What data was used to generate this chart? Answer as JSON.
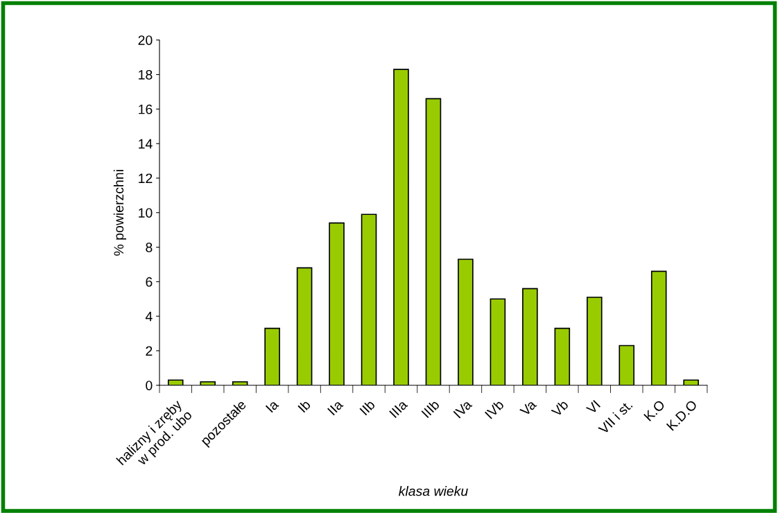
{
  "chart_data": {
    "type": "bar",
    "xlabel": "klasa wieku",
    "ylabel": "% powierzchni",
    "categories": [
      "halizny i zręby\nw prod. ubo",
      null,
      "pozostałe",
      "Ia",
      "Ib",
      "IIa",
      "IIb",
      "IIIa",
      "IIIb",
      "IVa",
      "IVb",
      "Va",
      "Vb",
      "VI",
      "VII i st.",
      "K.O",
      "K.D.O"
    ],
    "values": [
      0.3,
      0.2,
      0.2,
      3.3,
      6.8,
      9.4,
      9.9,
      18.3,
      16.6,
      7.3,
      5.0,
      5.6,
      3.3,
      5.1,
      2.3,
      6.6,
      0.3
    ],
    "color": "#99cc00",
    "ylim": [
      0,
      20
    ],
    "yticks": [
      0,
      2,
      4,
      6,
      8,
      10,
      12,
      14,
      16,
      18,
      20
    ],
    "grid": false,
    "legend": false
  }
}
